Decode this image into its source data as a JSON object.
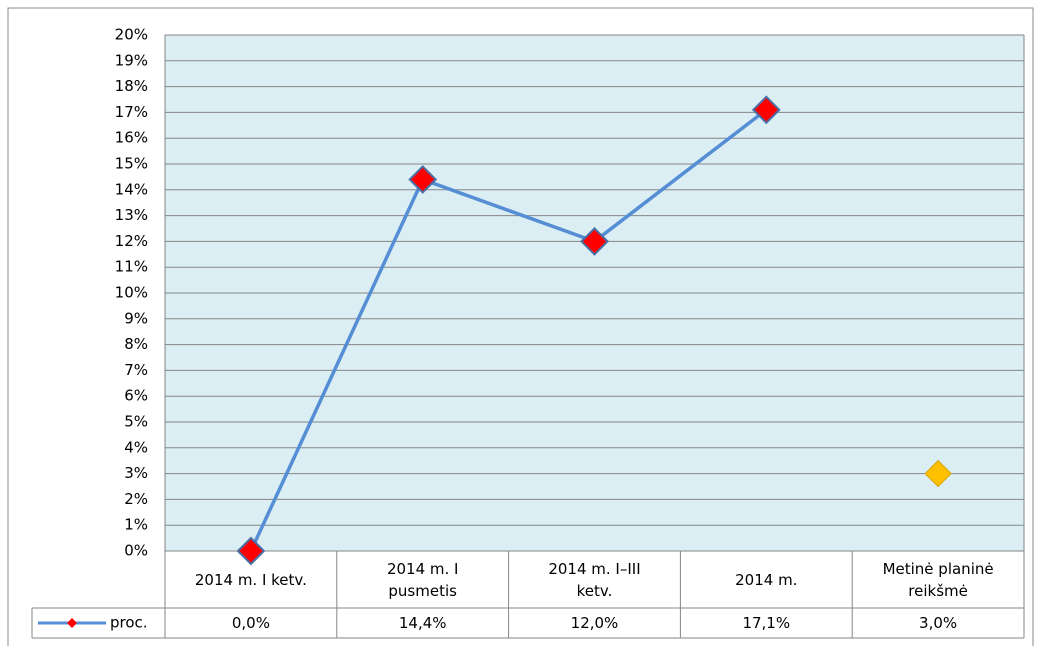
{
  "chart_data": {
    "type": "line",
    "categories": [
      "2014 m. I ketv.",
      "2014 m. I\npusmetis",
      "2014 m. I–III\nketv.",
      "2014 m.",
      "Metinė planinė\nreikšmė"
    ],
    "series": [
      {
        "name": "proc.",
        "color": "#558ed5",
        "marker_color": "#ff0000",
        "marker_colors": [
          "#ff0000",
          "#ff0000",
          "#ff0000",
          "#ff0000",
          "#ffc000"
        ],
        "values": [
          0.0,
          14.4,
          12.0,
          17.1,
          3.0
        ],
        "value_labels": [
          "0,0%",
          "14,4%",
          "12,0%",
          "17,1%",
          "3,0%"
        ]
      }
    ],
    "ylim": [
      0,
      20
    ],
    "yticks": [
      {
        "value": 0,
        "label": "0%"
      },
      {
        "value": 1,
        "label": "1%"
      },
      {
        "value": 2,
        "label": "2%"
      },
      {
        "value": 3,
        "label": "3%"
      },
      {
        "value": 4,
        "label": "4%"
      },
      {
        "value": 5,
        "label": "5%"
      },
      {
        "value": 6,
        "label": "6%"
      },
      {
        "value": 7,
        "label": "7%"
      },
      {
        "value": 8,
        "label": "8%"
      },
      {
        "value": 9,
        "label": "9%"
      },
      {
        "value": 10,
        "label": "10%"
      },
      {
        "value": 11,
        "label": "11%"
      },
      {
        "value": 12,
        "label": "12%"
      },
      {
        "value": 13,
        "label": "13%"
      },
      {
        "value": 14,
        "label": "14%"
      },
      {
        "value": 15,
        "label": "15%"
      },
      {
        "value": 16,
        "label": "16%"
      },
      {
        "value": 17,
        "label": "17%"
      },
      {
        "value": 18,
        "label": "18%"
      },
      {
        "value": 19,
        "label": "19%"
      },
      {
        "value": 20,
        "label": "20%"
      }
    ],
    "grid": true,
    "plot_background": "#daeef3",
    "data_table": true
  }
}
